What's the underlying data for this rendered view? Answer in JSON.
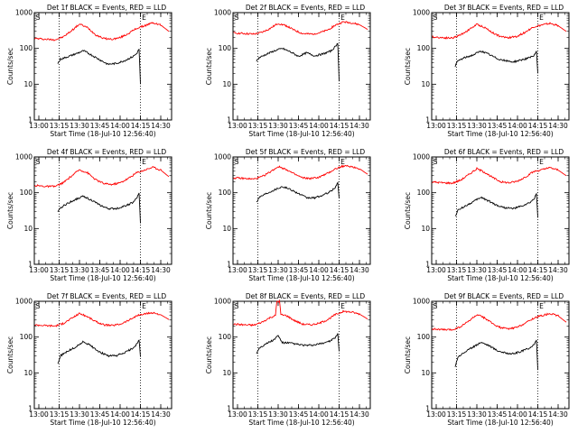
{
  "chart_data": [
    {
      "type": "line",
      "title": "Det 1f BLACK = Events, RED = LLD",
      "xlabel": "Start Time (18-Jul-10 12:56:40)",
      "ylabel": "Counts/sec",
      "yscale": "log",
      "ylim": [
        1,
        1000
      ],
      "xlim": [
        "12:56:40",
        "14:38:00"
      ],
      "x_ticks": [
        "13:00",
        "13:15",
        "13:30",
        "13:45",
        "14:00",
        "14:15",
        "14:30"
      ],
      "y_ticks": [
        "1",
        "10",
        "100",
        "1000"
      ],
      "vlines": [
        "13:15",
        "14:15"
      ],
      "markers": [
        "S",
        "E"
      ],
      "series": [
        {
          "name": "LLD",
          "color": "#ff0000",
          "x": [
            "12:57",
            "13:05",
            "13:12",
            "13:18",
            "13:24",
            "13:30",
            "13:36",
            "13:42",
            "13:48",
            "13:54",
            "14:00",
            "14:06",
            "14:12",
            "14:18",
            "14:24",
            "14:30",
            "14:36"
          ],
          "values": [
            190,
            180,
            175,
            210,
            310,
            480,
            380,
            240,
            190,
            180,
            200,
            260,
            360,
            430,
            520,
            450,
            300
          ]
        },
        {
          "name": "Events",
          "color": "#000000",
          "x": [
            "13:14",
            "13:16",
            "13:21",
            "13:27",
            "13:33",
            "13:39",
            "13:45",
            "13:51",
            "13:57",
            "14:03",
            "14:09",
            "14:12",
            "14:14",
            "14:15"
          ],
          "values": [
            38,
            50,
            58,
            70,
            86,
            65,
            48,
            36,
            38,
            45,
            58,
            70,
            95,
            10
          ]
        }
      ]
    },
    {
      "type": "line",
      "title": "Det 2f BLACK = Events, RED = LLD",
      "xlabel": "Start Time (18-Jul-10 12:56:40)",
      "ylabel": "Counts/sec",
      "yscale": "log",
      "ylim": [
        1,
        1000
      ],
      "xlim": [
        "12:56:40",
        "14:38:00"
      ],
      "x_ticks": [
        "13:00",
        "13:15",
        "13:30",
        "13:45",
        "14:00",
        "14:15",
        "14:30"
      ],
      "y_ticks": [
        "1",
        "10",
        "100",
        "1000"
      ],
      "vlines": [
        "13:15",
        "14:15"
      ],
      "markers": [
        "S",
        "E"
      ],
      "series": [
        {
          "name": "LLD",
          "color": "#ff0000",
          "x": [
            "12:57",
            "13:05",
            "13:12",
            "13:18",
            "13:24",
            "13:30",
            "13:36",
            "13:42",
            "13:48",
            "13:54",
            "14:00",
            "14:06",
            "14:12",
            "14:18",
            "14:24",
            "14:30",
            "14:36"
          ],
          "values": [
            270,
            260,
            250,
            280,
            360,
            500,
            430,
            320,
            260,
            250,
            270,
            320,
            440,
            550,
            520,
            460,
            340
          ]
        },
        {
          "name": "Events",
          "color": "#000000",
          "x": [
            "13:14",
            "13:16",
            "13:21",
            "13:27",
            "13:33",
            "13:39",
            "13:45",
            "13:51",
            "13:57",
            "14:03",
            "14:09",
            "14:12",
            "14:14",
            "14:15"
          ],
          "values": [
            45,
            55,
            68,
            85,
            100,
            80,
            60,
            75,
            62,
            70,
            85,
            110,
            140,
            12
          ]
        }
      ]
    },
    {
      "type": "line",
      "title": "Det 3f BLACK = Events, RED = LLD",
      "xlabel": "Start Time (18-Jul-10 12:56:40)",
      "ylabel": "Counts/sec",
      "yscale": "log",
      "ylim": [
        1,
        1000
      ],
      "xlim": [
        "12:56:40",
        "14:38:00"
      ],
      "x_ticks": [
        "13:00",
        "13:15",
        "13:30",
        "13:45",
        "14:00",
        "14:15",
        "14:30"
      ],
      "y_ticks": [
        "1",
        "10",
        "100",
        "1000"
      ],
      "vlines": [
        "13:15",
        "14:15"
      ],
      "markers": [
        "S",
        "E"
      ],
      "series": [
        {
          "name": "LLD",
          "color": "#ff0000",
          "x": [
            "12:57",
            "13:05",
            "13:12",
            "13:18",
            "13:24",
            "13:30",
            "13:36",
            "13:42",
            "13:48",
            "13:54",
            "14:00",
            "14:06",
            "14:12",
            "14:18",
            "14:24",
            "14:30",
            "14:36"
          ],
          "values": [
            210,
            200,
            195,
            240,
            330,
            470,
            380,
            270,
            210,
            200,
            220,
            290,
            400,
            450,
            500,
            430,
            300
          ]
        },
        {
          "name": "Events",
          "color": "#000000",
          "x": [
            "13:14",
            "13:16",
            "13:21",
            "13:27",
            "13:33",
            "13:39",
            "13:45",
            "13:51",
            "13:57",
            "14:03",
            "14:09",
            "14:12",
            "14:14",
            "14:15"
          ],
          "values": [
            32,
            45,
            55,
            65,
            85,
            68,
            52,
            45,
            42,
            48,
            55,
            62,
            80,
            20
          ]
        }
      ]
    },
    {
      "type": "line",
      "title": "Det 4f BLACK = Events, RED = LLD",
      "xlabel": "Start Time (18-Jul-10 12:56:40)",
      "ylabel": "Counts/sec",
      "yscale": "log",
      "ylim": [
        1,
        1000
      ],
      "xlim": [
        "12:56:40",
        "14:38:00"
      ],
      "x_ticks": [
        "13:00",
        "13:15",
        "13:30",
        "13:45",
        "14:00",
        "14:15",
        "14:30"
      ],
      "y_ticks": [
        "1",
        "10",
        "100",
        "1000"
      ],
      "vlines": [
        "13:15",
        "14:15"
      ],
      "markers": [
        "S",
        "E"
      ],
      "series": [
        {
          "name": "LLD",
          "color": "#ff0000",
          "x": [
            "12:57",
            "13:05",
            "13:12",
            "13:18",
            "13:24",
            "13:30",
            "13:36",
            "13:42",
            "13:48",
            "13:54",
            "14:00",
            "14:06",
            "14:12",
            "14:18",
            "14:24",
            "14:30",
            "14:36"
          ],
          "values": [
            160,
            150,
            150,
            190,
            290,
            440,
            360,
            230,
            180,
            170,
            190,
            250,
            360,
            430,
            520,
            430,
            280
          ]
        },
        {
          "name": "Events",
          "color": "#000000",
          "x": [
            "13:14",
            "13:16",
            "13:21",
            "13:27",
            "13:33",
            "13:39",
            "13:45",
            "13:51",
            "13:57",
            "14:03",
            "14:09",
            "14:12",
            "14:14",
            "14:15"
          ],
          "values": [
            28,
            38,
            50,
            65,
            80,
            62,
            45,
            36,
            36,
            42,
            52,
            68,
            95,
            14
          ]
        }
      ]
    },
    {
      "type": "line",
      "title": "Det 5f BLACK = Events, RED = LLD",
      "xlabel": "Start Time (18-Jul-10 12:56:40)",
      "ylabel": "Counts/sec",
      "yscale": "log",
      "ylim": [
        1,
        1000
      ],
      "xlim": [
        "12:56:40",
        "14:38:00"
      ],
      "x_ticks": [
        "13:00",
        "13:15",
        "13:30",
        "13:45",
        "14:00",
        "14:15",
        "14:30"
      ],
      "y_ticks": [
        "1",
        "10",
        "100",
        "1000"
      ],
      "vlines": [
        "13:15",
        "14:15"
      ],
      "markers": [
        "S",
        "E"
      ],
      "series": [
        {
          "name": "LLD",
          "color": "#ff0000",
          "x": [
            "12:57",
            "13:05",
            "13:12",
            "13:18",
            "13:24",
            "13:30",
            "13:36",
            "13:42",
            "13:48",
            "13:54",
            "14:00",
            "14:06",
            "14:12",
            "14:18",
            "14:24",
            "14:30",
            "14:36"
          ],
          "values": [
            260,
            250,
            240,
            280,
            380,
            540,
            450,
            330,
            260,
            250,
            270,
            340,
            460,
            560,
            540,
            470,
            330
          ]
        },
        {
          "name": "Events",
          "color": "#000000",
          "x": [
            "13:14",
            "13:16",
            "13:21",
            "13:27",
            "13:33",
            "13:39",
            "13:45",
            "13:51",
            "13:57",
            "14:03",
            "14:09",
            "14:12",
            "14:14",
            "14:15"
          ],
          "values": [
            55,
            75,
            95,
            120,
            150,
            125,
            95,
            72,
            72,
            85,
            110,
            140,
            190,
            70
          ]
        }
      ]
    },
    {
      "type": "line",
      "title": "Det 6f BLACK = Events, RED = LLD",
      "xlabel": "Start Time (18-Jul-10 12:56:40)",
      "ylabel": "Counts/sec",
      "yscale": "log",
      "ylim": [
        1,
        1000
      ],
      "xlim": [
        "12:56:40",
        "14:38:00"
      ],
      "x_ticks": [
        "13:00",
        "13:15",
        "13:30",
        "13:45",
        "14:00",
        "14:15",
        "14:30"
      ],
      "y_ticks": [
        "1",
        "10",
        "100",
        "1000"
      ],
      "vlines": [
        "13:15",
        "14:15"
      ],
      "markers": [
        "S",
        "E"
      ],
      "series": [
        {
          "name": "LLD",
          "color": "#ff0000",
          "x": [
            "12:57",
            "13:05",
            "13:12",
            "13:18",
            "13:24",
            "13:30",
            "13:36",
            "13:42",
            "13:48",
            "13:54",
            "14:00",
            "14:06",
            "14:12",
            "14:18",
            "14:24",
            "14:30",
            "14:36"
          ],
          "values": [
            200,
            190,
            185,
            225,
            320,
            470,
            370,
            260,
            200,
            190,
            210,
            280,
            390,
            440,
            500,
            430,
            300
          ]
        },
        {
          "name": "Events",
          "color": "#000000",
          "x": [
            "13:14",
            "13:16",
            "13:21",
            "13:27",
            "13:33",
            "13:39",
            "13:45",
            "13:51",
            "13:57",
            "14:03",
            "14:09",
            "14:12",
            "14:14",
            "14:15"
          ],
          "values": [
            22,
            32,
            42,
            55,
            75,
            58,
            44,
            38,
            36,
            42,
            52,
            65,
            95,
            20
          ]
        }
      ]
    },
    {
      "type": "line",
      "title": "Det 7f BLACK = Events, RED = LLD",
      "xlabel": "Start Time (18-Jul-10 12:56:40)",
      "ylabel": "Counts/sec",
      "yscale": "log",
      "ylim": [
        1,
        1000
      ],
      "xlim": [
        "12:56:40",
        "14:38:00"
      ],
      "x_ticks": [
        "13:00",
        "13:15",
        "13:30",
        "13:45",
        "14:00",
        "14:15",
        "14:30"
      ],
      "y_ticks": [
        "1",
        "10",
        "100",
        "1000"
      ],
      "vlines": [
        "13:15",
        "14:15"
      ],
      "markers": [
        "S",
        "E"
      ],
      "series": [
        {
          "name": "LLD",
          "color": "#ff0000",
          "x": [
            "12:57",
            "13:05",
            "13:12",
            "13:18",
            "13:24",
            "13:30",
            "13:36",
            "13:42",
            "13:48",
            "13:54",
            "14:00",
            "14:06",
            "14:12",
            "14:18",
            "14:24",
            "14:30",
            "14:36"
          ],
          "values": [
            220,
            210,
            205,
            240,
            330,
            460,
            370,
            270,
            220,
            210,
            230,
            290,
            390,
            440,
            480,
            420,
            310
          ]
        },
        {
          "name": "Events",
          "color": "#000000",
          "x": [
            "13:14",
            "13:16",
            "13:21",
            "13:27",
            "13:33",
            "13:39",
            "13:45",
            "13:51",
            "13:57",
            "14:03",
            "14:09",
            "14:12",
            "14:14",
            "14:15"
          ],
          "values": [
            18,
            30,
            40,
            52,
            75,
            55,
            38,
            30,
            30,
            36,
            48,
            62,
            85,
            28
          ]
        }
      ]
    },
    {
      "type": "line",
      "title": "Det 8f BLACK = Events, RED = LLD",
      "xlabel": "Start Time (18-Jul-10 12:56:40)",
      "ylabel": "Counts/sec",
      "yscale": "log",
      "ylim": [
        1,
        1000
      ],
      "xlim": [
        "12:56:40",
        "14:38:00"
      ],
      "x_ticks": [
        "13:00",
        "13:15",
        "13:30",
        "13:45",
        "14:00",
        "14:15",
        "14:30"
      ],
      "y_ticks": [
        "1",
        "10",
        "100",
        "1000"
      ],
      "vlines": [
        "13:15",
        "14:15"
      ],
      "markers": [
        "S",
        "E"
      ],
      "series": [
        {
          "name": "LLD",
          "color": "#ff0000",
          "x": [
            "12:57",
            "13:05",
            "13:12",
            "13:18",
            "13:24",
            "13:28",
            "13:29",
            "13:31",
            "13:32",
            "13:36",
            "13:42",
            "13:48",
            "13:54",
            "14:00",
            "14:06",
            "14:12",
            "14:18",
            "14:24",
            "14:30",
            "14:36"
          ],
          "values": [
            230,
            220,
            215,
            260,
            350,
            400,
            1000,
            1000,
            420,
            400,
            290,
            230,
            220,
            240,
            300,
            420,
            520,
            500,
            440,
            320
          ]
        },
        {
          "name": "Events",
          "color": "#000000",
          "x": [
            "13:14",
            "13:16",
            "13:21",
            "13:27",
            "13:30",
            "13:33",
            "13:39",
            "13:45",
            "13:51",
            "13:57",
            "14:03",
            "14:09",
            "14:12",
            "14:14",
            "14:15"
          ],
          "values": [
            35,
            50,
            65,
            85,
            110,
            70,
            68,
            62,
            58,
            60,
            68,
            80,
            95,
            120,
            40
          ]
        }
      ]
    },
    {
      "type": "line",
      "title": "Det 9f BLACK = Events, RED = LLD",
      "xlabel": "Start Time (18-Jul-10 12:56:40)",
      "ylabel": "Counts/sec",
      "yscale": "log",
      "ylim": [
        1,
        1000
      ],
      "xlim": [
        "12:56:40",
        "14:38:00"
      ],
      "x_ticks": [
        "13:00",
        "13:15",
        "13:30",
        "13:45",
        "14:00",
        "14:15",
        "14:30"
      ],
      "y_ticks": [
        "1",
        "10",
        "100",
        "1000"
      ],
      "vlines": [
        "13:15",
        "14:15"
      ],
      "markers": [
        "S",
        "E"
      ],
      "series": [
        {
          "name": "LLD",
          "color": "#ff0000",
          "x": [
            "12:57",
            "13:05",
            "13:12",
            "13:18",
            "13:24",
            "13:30",
            "13:36",
            "13:42",
            "13:48",
            "13:54",
            "14:00",
            "14:06",
            "14:12",
            "14:18",
            "14:24",
            "14:30",
            "14:36"
          ],
          "values": [
            170,
            160,
            160,
            195,
            280,
            420,
            340,
            230,
            180,
            170,
            190,
            250,
            340,
            400,
            460,
            390,
            260
          ]
        },
        {
          "name": "Events",
          "color": "#000000",
          "x": [
            "13:14",
            "13:16",
            "13:21",
            "13:27",
            "13:33",
            "13:39",
            "13:45",
            "13:51",
            "13:57",
            "14:03",
            "14:09",
            "14:12",
            "14:14",
            "14:15"
          ],
          "values": [
            15,
            28,
            38,
            52,
            72,
            58,
            42,
            36,
            34,
            40,
            50,
            60,
            80,
            12
          ]
        }
      ]
    }
  ]
}
